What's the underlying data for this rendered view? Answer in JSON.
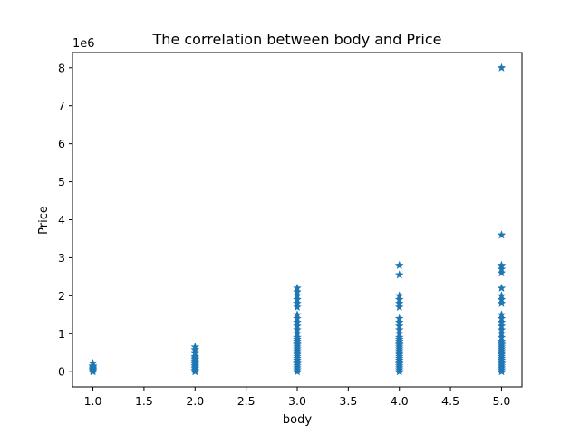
{
  "chart_data": {
    "type": "scatter",
    "title": "The correlation between body and Price",
    "xlabel": "body",
    "ylabel": "Price",
    "y_offset_label": "1e6",
    "xlim": [
      0.8,
      5.2
    ],
    "ylim": [
      -0.4,
      8.4
    ],
    "x_ticks": [
      1.0,
      1.5,
      2.0,
      2.5,
      3.0,
      3.5,
      4.0,
      4.5,
      5.0
    ],
    "x_tick_labels": [
      "1.0",
      "1.5",
      "2.0",
      "2.5",
      "3.0",
      "3.5",
      "4.0",
      "4.5",
      "5.0"
    ],
    "y_ticks": [
      0,
      1,
      2,
      3,
      4,
      5,
      6,
      7,
      8
    ],
    "y_tick_labels": [
      "0",
      "1",
      "2",
      "3",
      "4",
      "5",
      "6",
      "7",
      "8"
    ],
    "grid": false,
    "marker": "star",
    "color": "#1f77b4",
    "series": [
      {
        "points": [
          [
            1.0,
            0.0
          ],
          [
            1.0,
            0.03
          ],
          [
            1.0,
            0.06
          ],
          [
            1.0,
            0.09
          ],
          [
            1.0,
            0.12
          ],
          [
            1.0,
            0.15
          ],
          [
            1.0,
            0.22
          ],
          [
            2.0,
            0.0
          ],
          [
            2.0,
            0.04
          ],
          [
            2.0,
            0.08
          ],
          [
            2.0,
            0.12
          ],
          [
            2.0,
            0.16
          ],
          [
            2.0,
            0.2
          ],
          [
            2.0,
            0.24
          ],
          [
            2.0,
            0.28
          ],
          [
            2.0,
            0.32
          ],
          [
            2.0,
            0.36
          ],
          [
            2.0,
            0.4
          ],
          [
            2.0,
            0.5
          ],
          [
            2.0,
            0.58
          ],
          [
            2.0,
            0.65
          ],
          [
            3.0,
            0.0
          ],
          [
            3.0,
            0.05
          ],
          [
            3.0,
            0.1
          ],
          [
            3.0,
            0.15
          ],
          [
            3.0,
            0.2
          ],
          [
            3.0,
            0.25
          ],
          [
            3.0,
            0.3
          ],
          [
            3.0,
            0.35
          ],
          [
            3.0,
            0.4
          ],
          [
            3.0,
            0.45
          ],
          [
            3.0,
            0.5
          ],
          [
            3.0,
            0.55
          ],
          [
            3.0,
            0.6
          ],
          [
            3.0,
            0.65
          ],
          [
            3.0,
            0.7
          ],
          [
            3.0,
            0.75
          ],
          [
            3.0,
            0.8
          ],
          [
            3.0,
            0.85
          ],
          [
            3.0,
            0.9
          ],
          [
            3.0,
            1.0
          ],
          [
            3.0,
            1.1
          ],
          [
            3.0,
            1.2
          ],
          [
            3.0,
            1.3
          ],
          [
            3.0,
            1.4
          ],
          [
            3.0,
            1.5
          ],
          [
            3.0,
            1.7
          ],
          [
            3.0,
            1.8
          ],
          [
            3.0,
            1.9
          ],
          [
            3.0,
            2.0
          ],
          [
            3.0,
            2.1
          ],
          [
            3.0,
            2.2
          ],
          [
            4.0,
            0.0
          ],
          [
            4.0,
            0.05
          ],
          [
            4.0,
            0.1
          ],
          [
            4.0,
            0.15
          ],
          [
            4.0,
            0.2
          ],
          [
            4.0,
            0.25
          ],
          [
            4.0,
            0.3
          ],
          [
            4.0,
            0.35
          ],
          [
            4.0,
            0.4
          ],
          [
            4.0,
            0.45
          ],
          [
            4.0,
            0.5
          ],
          [
            4.0,
            0.55
          ],
          [
            4.0,
            0.6
          ],
          [
            4.0,
            0.65
          ],
          [
            4.0,
            0.7
          ],
          [
            4.0,
            0.75
          ],
          [
            4.0,
            0.8
          ],
          [
            4.0,
            0.85
          ],
          [
            4.0,
            0.9
          ],
          [
            4.0,
            1.0
          ],
          [
            4.0,
            1.1
          ],
          [
            4.0,
            1.2
          ],
          [
            4.0,
            1.3
          ],
          [
            4.0,
            1.4
          ],
          [
            4.0,
            1.7
          ],
          [
            4.0,
            1.8
          ],
          [
            4.0,
            1.9
          ],
          [
            4.0,
            2.0
          ],
          [
            4.0,
            2.55
          ],
          [
            4.0,
            2.8
          ],
          [
            5.0,
            0.0
          ],
          [
            5.0,
            0.05
          ],
          [
            5.0,
            0.1
          ],
          [
            5.0,
            0.15
          ],
          [
            5.0,
            0.2
          ],
          [
            5.0,
            0.25
          ],
          [
            5.0,
            0.3
          ],
          [
            5.0,
            0.35
          ],
          [
            5.0,
            0.4
          ],
          [
            5.0,
            0.45
          ],
          [
            5.0,
            0.5
          ],
          [
            5.0,
            0.55
          ],
          [
            5.0,
            0.6
          ],
          [
            5.0,
            0.65
          ],
          [
            5.0,
            0.7
          ],
          [
            5.0,
            0.75
          ],
          [
            5.0,
            0.8
          ],
          [
            5.0,
            0.9
          ],
          [
            5.0,
            1.0
          ],
          [
            5.0,
            1.1
          ],
          [
            5.0,
            1.2
          ],
          [
            5.0,
            1.3
          ],
          [
            5.0,
            1.4
          ],
          [
            5.0,
            1.5
          ],
          [
            5.0,
            1.8
          ],
          [
            5.0,
            1.9
          ],
          [
            5.0,
            2.0
          ],
          [
            5.0,
            2.2
          ],
          [
            5.0,
            2.6
          ],
          [
            5.0,
            2.7
          ],
          [
            5.0,
            2.8
          ],
          [
            5.0,
            3.6
          ],
          [
            5.0,
            8.0
          ]
        ]
      }
    ]
  }
}
